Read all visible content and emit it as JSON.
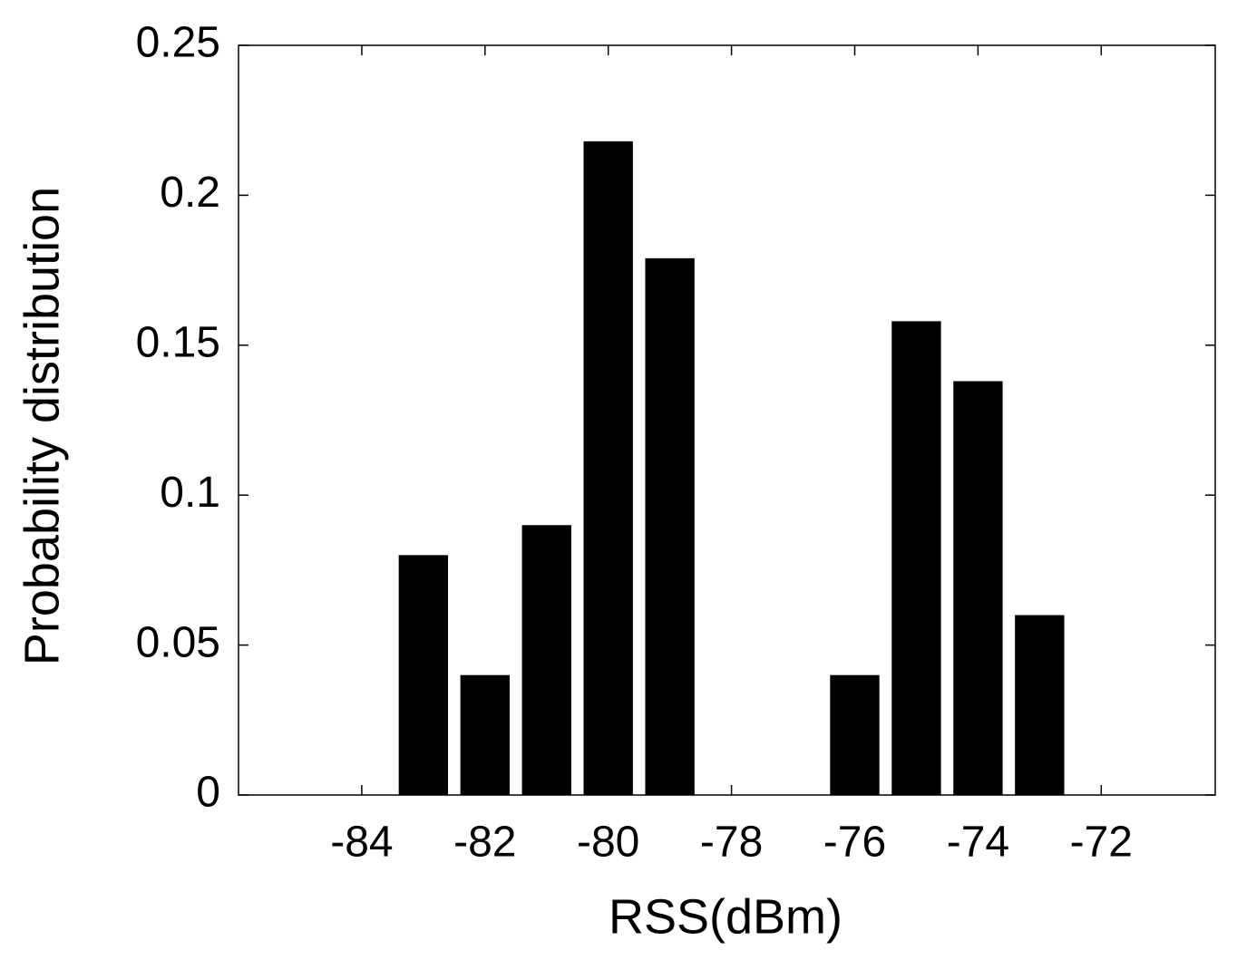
{
  "chart_data": {
    "type": "bar",
    "xlabel": "RSS(dBm)",
    "ylabel": "Probability distribution",
    "x": [
      -83,
      -82,
      -81,
      -80,
      -79,
      -76,
      -75,
      -74,
      -73
    ],
    "values": [
      0.08,
      0.04,
      0.09,
      0.218,
      0.179,
      0.04,
      0.158,
      0.138,
      0.06
    ],
    "color": "#000000",
    "xlim": [
      -86,
      -70.15
    ],
    "xticks": [
      -84,
      -82,
      -80,
      -78,
      -76,
      -74,
      -72
    ],
    "ylim": [
      0,
      0.25
    ],
    "yticks": [
      0,
      0.05,
      0.1,
      0.15,
      0.2,
      0.25
    ]
  }
}
